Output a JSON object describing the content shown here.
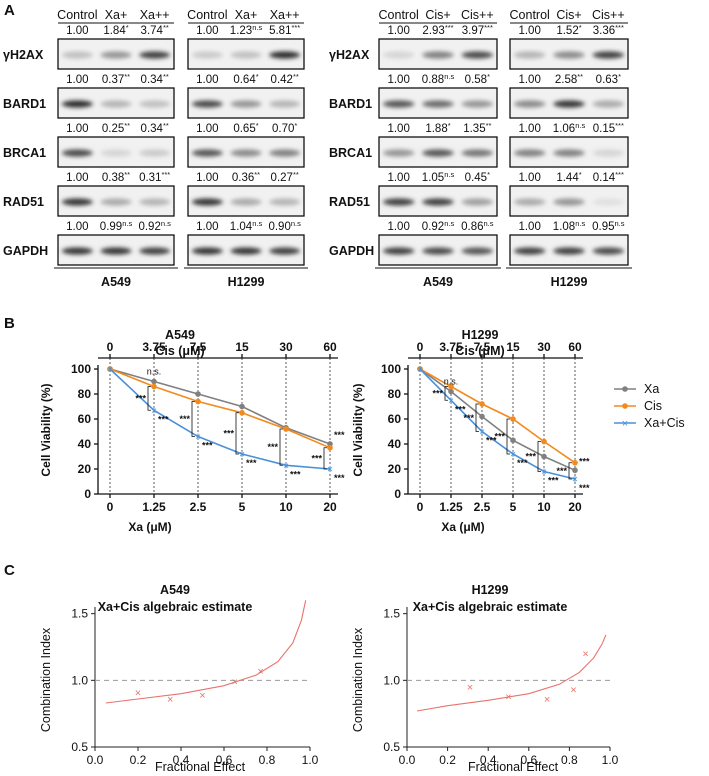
{
  "panel_labels": [
    "A",
    "B",
    "C"
  ],
  "blots": {
    "left": {
      "group1": {
        "cell_line": "A549",
        "lanes": [
          "Control",
          "Xa+",
          "Xa++"
        ]
      },
      "group2": {
        "cell_line": "H1299",
        "lanes": [
          "Control",
          "Xa+",
          "Xa++"
        ]
      },
      "rows": [
        {
          "label": "γH2AX",
          "q1": [
            [
              "1.00",
              ""
            ],
            [
              "1.84",
              "*"
            ],
            [
              "3.74",
              "**"
            ]
          ],
          "q2": [
            [
              "1.00",
              ""
            ],
            [
              "1.23",
              "n.s"
            ],
            [
              "5.81",
              "***"
            ]
          ],
          "i1": [
            0.25,
            0.45,
            0.85
          ],
          "i2": [
            0.2,
            0.25,
            0.95
          ]
        },
        {
          "label": "BARD1",
          "q1": [
            [
              "1.00",
              ""
            ],
            [
              "0.37",
              "**"
            ],
            [
              "0.34",
              "**"
            ]
          ],
          "q2": [
            [
              "1.00",
              ""
            ],
            [
              "0.64",
              "*"
            ],
            [
              "0.42",
              "**"
            ]
          ],
          "i1": [
            0.95,
            0.3,
            0.25
          ],
          "i2": [
            0.8,
            0.45,
            0.3
          ]
        },
        {
          "label": "BRCA1",
          "q1": [
            [
              "1.00",
              ""
            ],
            [
              "0.25",
              "**"
            ],
            [
              "0.34",
              "**"
            ]
          ],
          "q2": [
            [
              "1.00",
              ""
            ],
            [
              "0.65",
              "*"
            ],
            [
              "0.70",
              "*"
            ]
          ],
          "i1": [
            0.8,
            0.15,
            0.2
          ],
          "i2": [
            0.75,
            0.5,
            0.55
          ]
        },
        {
          "label": "RAD51",
          "q1": [
            [
              "1.00",
              ""
            ],
            [
              "0.38",
              "**"
            ],
            [
              "0.31",
              "***"
            ]
          ],
          "q2": [
            [
              "1.00",
              ""
            ],
            [
              "0.36",
              "**"
            ],
            [
              "0.27",
              "**"
            ]
          ],
          "i1": [
            0.9,
            0.35,
            0.3
          ],
          "i2": [
            0.9,
            0.35,
            0.3
          ]
        },
        {
          "label": "GAPDH",
          "q1": [
            [
              "1.00",
              ""
            ],
            [
              "0.99",
              "n.s"
            ],
            [
              "0.92",
              "n.s"
            ]
          ],
          "q2": [
            [
              "1.00",
              ""
            ],
            [
              "1.04",
              "n.s"
            ],
            [
              "0.90",
              "n.s"
            ]
          ],
          "i1": [
            0.9,
            0.9,
            0.85
          ],
          "i2": [
            0.9,
            0.9,
            0.85
          ]
        }
      ]
    },
    "right": {
      "group1": {
        "cell_line": "A549",
        "lanes": [
          "Control",
          "Cis+",
          "Cis++"
        ]
      },
      "group2": {
        "cell_line": "H1299",
        "lanes": [
          "Control",
          "Cis+",
          "Cis++"
        ]
      },
      "rows": [
        {
          "label": "γH2AX",
          "q1": [
            [
              "1.00",
              ""
            ],
            [
              "2.93",
              "***"
            ],
            [
              "3.97",
              "***"
            ]
          ],
          "q2": [
            [
              "1.00",
              ""
            ],
            [
              "1.52",
              "*"
            ],
            [
              "3.36",
              "***"
            ]
          ],
          "i1": [
            0.15,
            0.55,
            0.8
          ],
          "i2": [
            0.3,
            0.5,
            0.85
          ]
        },
        {
          "label": "BARD1",
          "q1": [
            [
              "1.00",
              ""
            ],
            [
              "0.88",
              "n.s"
            ],
            [
              "0.58",
              "*"
            ]
          ],
          "q2": [
            [
              "1.00",
              ""
            ],
            [
              "2.58",
              "**"
            ],
            [
              "0.63",
              "*"
            ]
          ],
          "i1": [
            0.75,
            0.65,
            0.45
          ],
          "i2": [
            0.5,
            0.9,
            0.35
          ]
        },
        {
          "label": "BRCA1",
          "q1": [
            [
              "1.00",
              ""
            ],
            [
              "1.88",
              "*"
            ],
            [
              "1.35",
              "**"
            ]
          ],
          "q2": [
            [
              "1.00",
              ""
            ],
            [
              "1.06",
              "n.s"
            ],
            [
              "0.15",
              "***"
            ]
          ],
          "i1": [
            0.45,
            0.75,
            0.6
          ],
          "i2": [
            0.55,
            0.55,
            0.15
          ]
        },
        {
          "label": "RAD51",
          "q1": [
            [
              "1.00",
              ""
            ],
            [
              "1.05",
              "n.s"
            ],
            [
              "0.45",
              "*"
            ]
          ],
          "q2": [
            [
              "1.00",
              ""
            ],
            [
              "1.44",
              "*"
            ],
            [
              "0.14",
              "***"
            ]
          ],
          "i1": [
            0.85,
            0.85,
            0.4
          ],
          "i2": [
            0.35,
            0.45,
            0.1
          ]
        },
        {
          "label": "GAPDH",
          "q1": [
            [
              "1.00",
              ""
            ],
            [
              "0.92",
              "n.s"
            ],
            [
              "0.86",
              "n.s"
            ]
          ],
          "q2": [
            [
              "1.00",
              ""
            ],
            [
              "1.08",
              "n.s"
            ],
            [
              "0.95",
              "n.s"
            ]
          ],
          "i1": [
            0.85,
            0.8,
            0.75
          ],
          "i2": [
            0.85,
            0.85,
            0.8
          ]
        }
      ]
    }
  },
  "colors": {
    "xa": "#808080",
    "cis": "#F28A1E",
    "combo": "#4A90D9",
    "ci_line": "#E8736B",
    "ci_ref": "#999999"
  },
  "chart_data": [
    {
      "type": "line",
      "title": "A549",
      "top_axis_label": "Cis (μM)",
      "top_ticks": [
        "0",
        "3.75",
        "7.5",
        "15",
        "30",
        "60"
      ],
      "xlabel": "Xa (μM)",
      "x_ticks": [
        "0",
        "1.25",
        "2.5",
        "5",
        "10",
        "20"
      ],
      "ylabel": "Cell Viability (%)",
      "ylim": [
        0,
        100
      ],
      "yticks": [
        0,
        20,
        40,
        60,
        80,
        100
      ],
      "legend": [
        "Xa",
        "Cis",
        "Xa+Cis"
      ],
      "series": [
        {
          "name": "Xa",
          "values": [
            100,
            90,
            80,
            70,
            53,
            40
          ]
        },
        {
          "name": "Cis",
          "values": [
            100,
            86,
            74,
            65,
            52,
            37
          ]
        },
        {
          "name": "Xa+Cis",
          "values": [
            100,
            67,
            46,
            32,
            23,
            20
          ]
        }
      ],
      "annotations": {
        "ns": "n.s.",
        "sig": "***"
      }
    },
    {
      "type": "line",
      "title": "H1299",
      "top_axis_label": "Cis (μM)",
      "top_ticks": [
        "0",
        "3.75",
        "7.5",
        "15",
        "30",
        "60"
      ],
      "xlabel": "Xa (μM)",
      "x_ticks": [
        "0",
        "1.25",
        "2.5",
        "5",
        "10",
        "20"
      ],
      "ylabel": "Cell Viability (%)",
      "ylim": [
        0,
        100
      ],
      "yticks": [
        0,
        20,
        40,
        60,
        80,
        100
      ],
      "legend": [
        "Xa",
        "Cis",
        "Xa+Cis"
      ],
      "series": [
        {
          "name": "Xa",
          "values": [
            100,
            82,
            62,
            43,
            30,
            19
          ]
        },
        {
          "name": "Cis",
          "values": [
            100,
            86,
            72,
            60,
            42,
            25
          ]
        },
        {
          "name": "Xa+Cis",
          "values": [
            100,
            75,
            50,
            32,
            18,
            12
          ]
        }
      ],
      "annotations": {
        "ns": "n.s.",
        "sig": "***"
      }
    },
    {
      "type": "scatter",
      "title": "A549",
      "subtitle": "Xa+Cis algebraic estimate",
      "xlabel": "Fractional Effect",
      "ylabel": "Combination Index",
      "xlim": [
        0,
        1
      ],
      "ylim": [
        0.5,
        1.55
      ],
      "xticks": [
        "0.0",
        "0.2",
        "0.4",
        "0.6",
        "0.8",
        "1.0"
      ],
      "yticks": [
        "0.5",
        "1.0",
        "1.5"
      ],
      "reference_y": 1.0,
      "points": [
        [
          0.2,
          0.91
        ],
        [
          0.35,
          0.86
        ],
        [
          0.5,
          0.89
        ],
        [
          0.65,
          0.99
        ],
        [
          0.77,
          1.07
        ]
      ],
      "curve": [
        [
          0.05,
          0.83
        ],
        [
          0.2,
          0.86
        ],
        [
          0.4,
          0.9
        ],
        [
          0.6,
          0.96
        ],
        [
          0.75,
          1.04
        ],
        [
          0.85,
          1.14
        ],
        [
          0.92,
          1.28
        ],
        [
          0.96,
          1.45
        ],
        [
          0.98,
          1.6
        ]
      ]
    },
    {
      "type": "scatter",
      "title": "H1299",
      "subtitle": "Xa+Cis algebraic estimate",
      "xlabel": "Fractional Effect",
      "ylabel": "Combination Index",
      "xlim": [
        0,
        1
      ],
      "ylim": [
        0.5,
        1.55
      ],
      "xticks": [
        "0.0",
        "0.2",
        "0.4",
        "0.6",
        "0.8",
        "1.0"
      ],
      "yticks": [
        "0.5",
        "1.0",
        "1.5"
      ],
      "reference_y": 1.0,
      "points": [
        [
          0.31,
          0.95
        ],
        [
          0.5,
          0.88
        ],
        [
          0.69,
          0.86
        ],
        [
          0.82,
          0.93
        ],
        [
          0.88,
          1.2
        ]
      ],
      "curve": [
        [
          0.05,
          0.77
        ],
        [
          0.2,
          0.81
        ],
        [
          0.4,
          0.85
        ],
        [
          0.6,
          0.9
        ],
        [
          0.75,
          0.97
        ],
        [
          0.85,
          1.06
        ],
        [
          0.92,
          1.17
        ],
        [
          0.96,
          1.27
        ],
        [
          0.98,
          1.34
        ]
      ]
    }
  ]
}
